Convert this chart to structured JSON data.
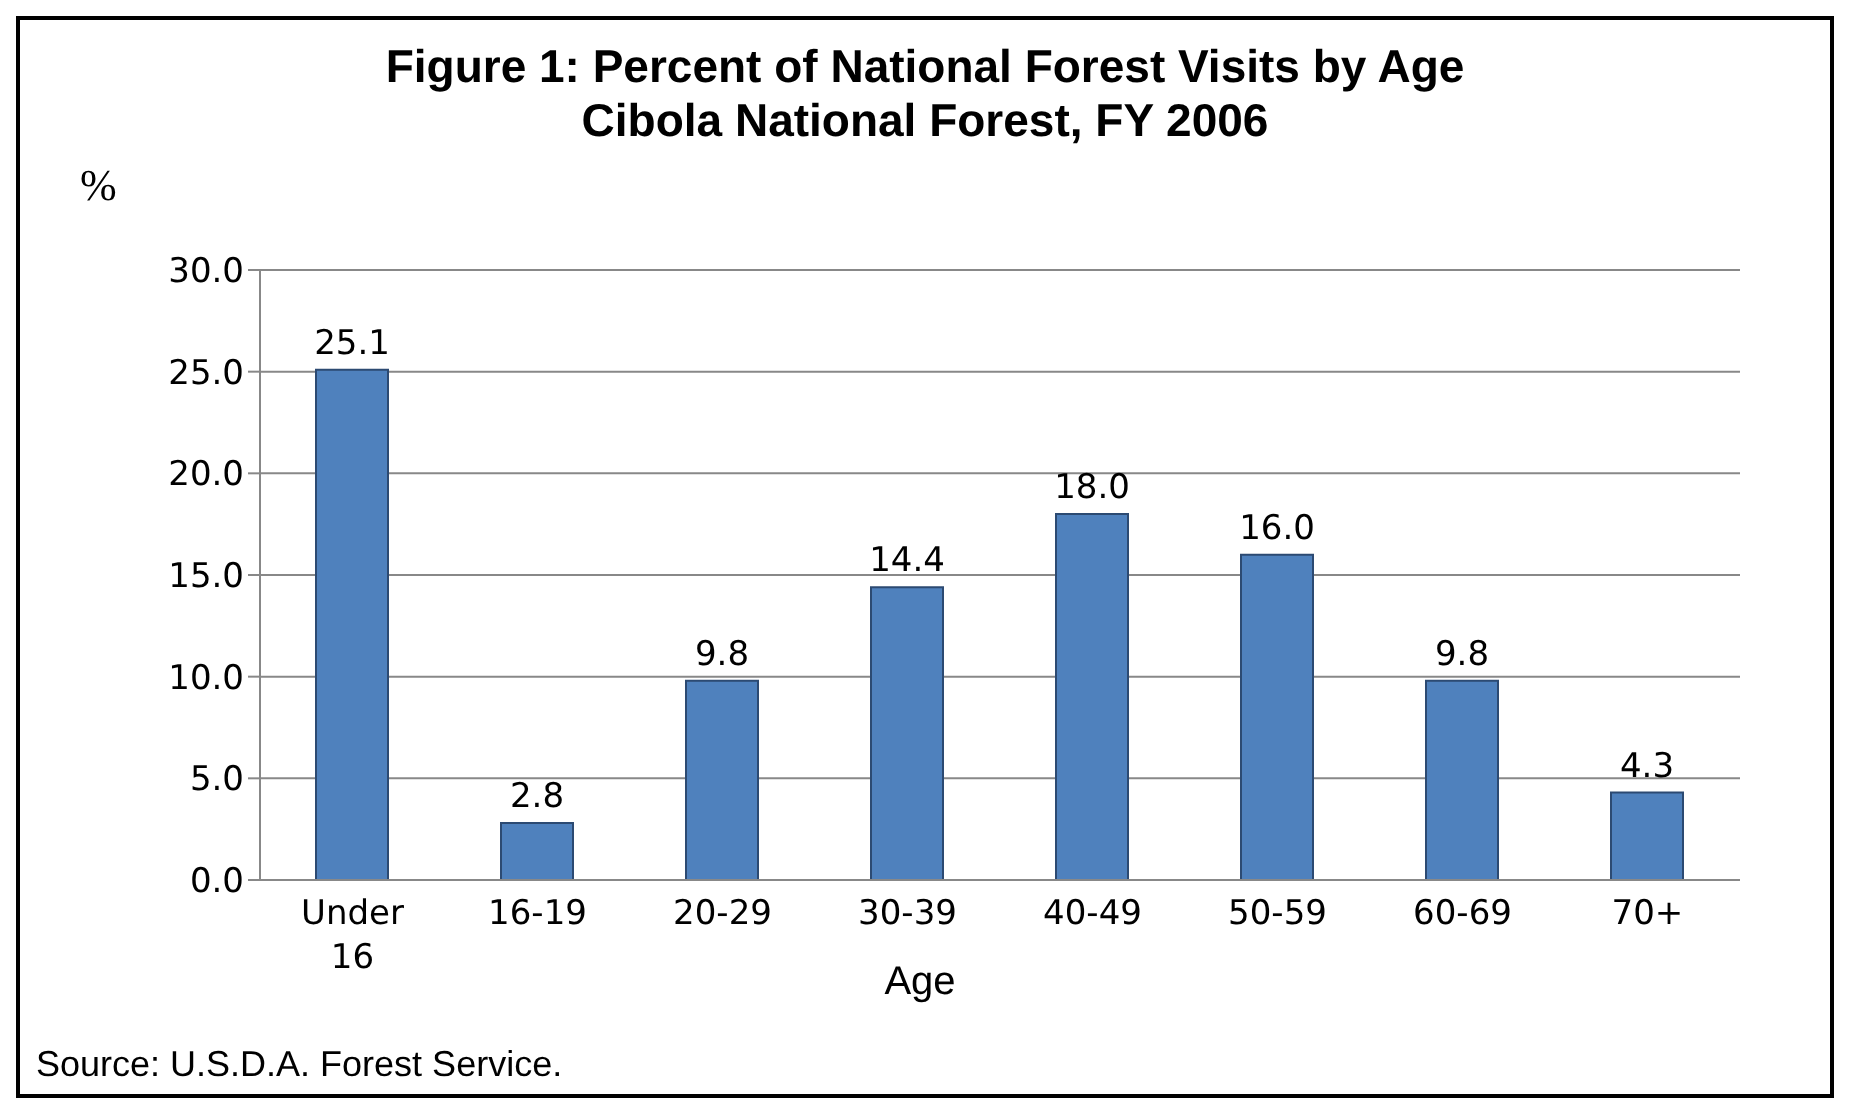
{
  "chart_data": {
    "type": "bar",
    "title": "Figure 1: Percent of National Forest Visits by Age",
    "subtitle": "Cibola National Forest, FY 2006",
    "ylabel": "%",
    "xlabel": "Age",
    "annotations": [
      "Source: U.S.D.A. Forest Service."
    ],
    "categories": [
      "Under 16",
      "16-19",
      "20-29",
      "30-39",
      "40-49",
      "50-59",
      "60-69",
      "70+"
    ],
    "values": [
      25.1,
      2.8,
      9.8,
      14.4,
      18.0,
      16.0,
      9.8,
      4.3
    ],
    "value_labels": [
      "25.1",
      "2.8",
      "9.8",
      "14.4",
      "18.0",
      "16.0",
      "9.8",
      "4.3"
    ],
    "color": "#4f81bd",
    "ylim": [
      0,
      30
    ],
    "yticks": [
      {
        "value": 0,
        "label": "0.0"
      },
      {
        "value": 5,
        "label": "5.0"
      },
      {
        "value": 10,
        "label": "10.0"
      },
      {
        "value": 15,
        "label": "15.0"
      },
      {
        "value": 20,
        "label": "20.0"
      },
      {
        "value": 25,
        "label": "25.0"
      },
      {
        "value": 30,
        "label": "30.0"
      }
    ],
    "grid": "y"
  }
}
